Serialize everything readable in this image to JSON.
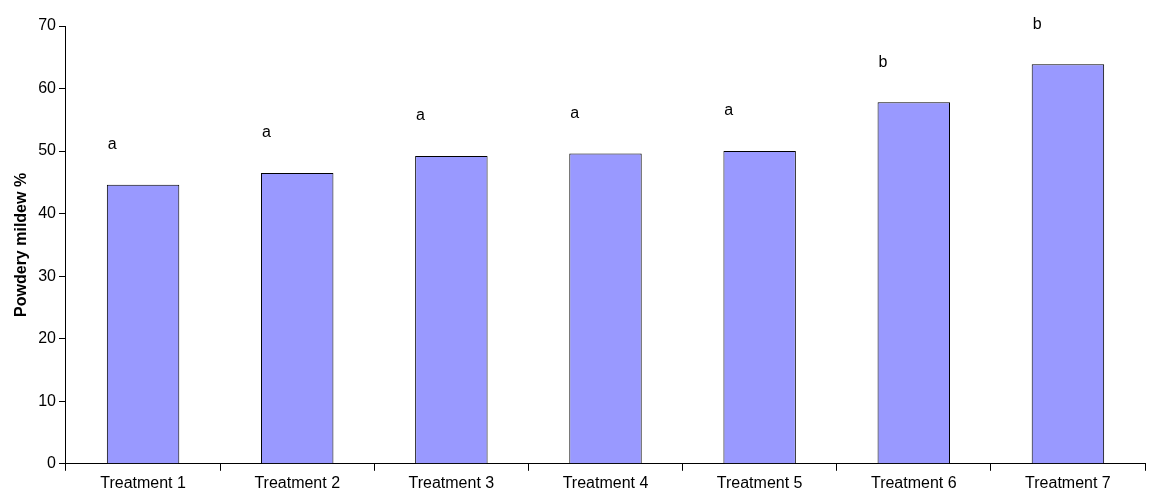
{
  "chart_data": {
    "type": "bar",
    "ylabel": "Powdery mildew %",
    "categories": [
      "Treatment 1",
      "Treatment 2",
      "Treatment 3",
      "Treatment 4",
      "Treatment 5",
      "Treatment 6",
      "Treatment 7"
    ],
    "values": [
      44.6,
      46.5,
      49.2,
      49.6,
      50.0,
      57.8,
      63.9
    ],
    "color": "#9999ff",
    "ylim": [
      0,
      70
    ],
    "yticks": [
      0,
      10,
      20,
      30,
      40,
      50,
      60,
      70
    ],
    "grid": false,
    "legend": false,
    "annotations": [
      "a",
      "a",
      "a",
      "a",
      "a",
      "b",
      "b"
    ]
  }
}
